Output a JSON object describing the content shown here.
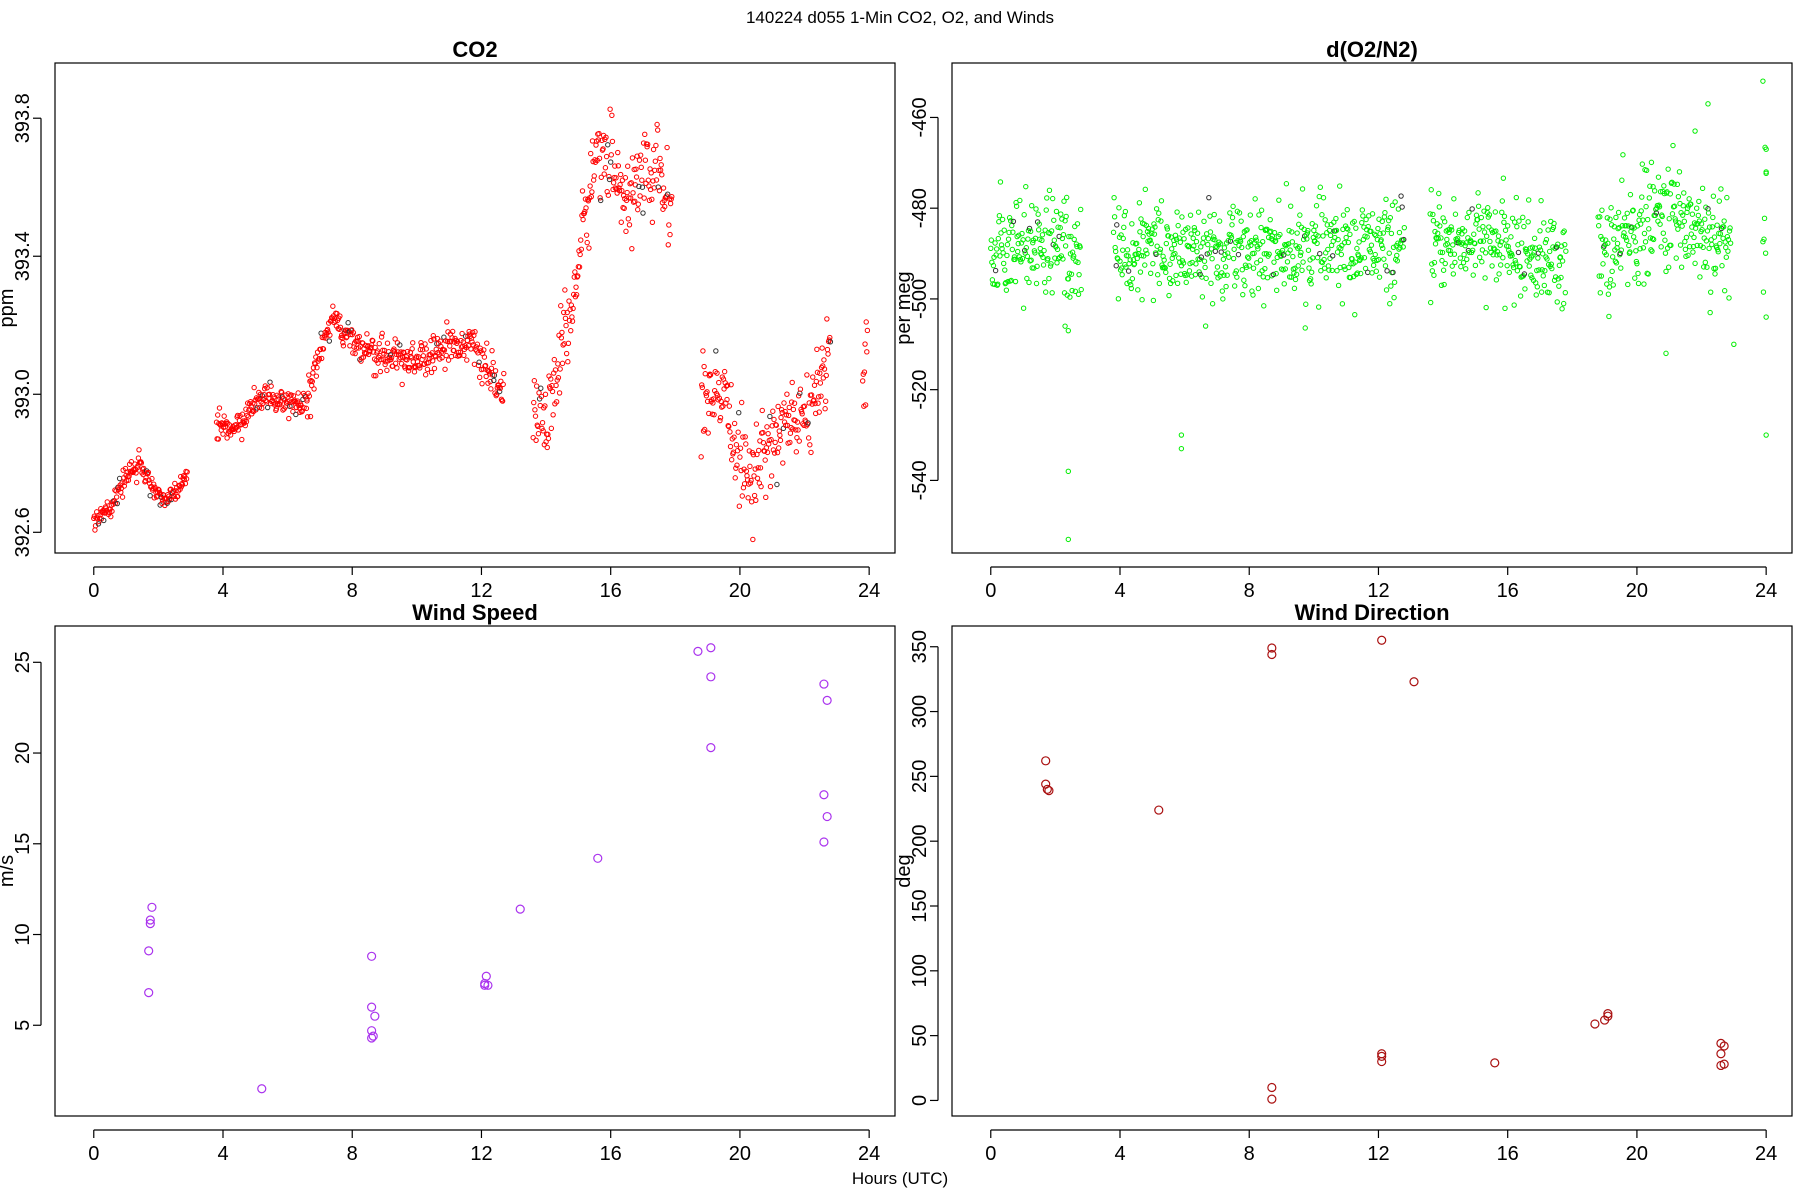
{
  "figure": {
    "title": "140224   d055   1-Min CO2, O2, and Winds",
    "xlabel": "Hours (UTC)"
  },
  "chart_data": [
    {
      "type": "scatter",
      "title": "CO2",
      "xlabel": "",
      "ylabel": "ppm",
      "xlim": [
        -1.2,
        24.8
      ],
      "ylim": [
        392.54,
        393.96
      ],
      "xticks": [
        0,
        4,
        8,
        12,
        16,
        20,
        24
      ],
      "yticks": [
        392.6,
        393.0,
        393.4,
        393.8
      ],
      "ytick_labels": [
        "392.6",
        "393.0",
        "393.4",
        "393.8"
      ],
      "color": "#ff0000",
      "dense": true,
      "points_per_hour": 55,
      "segments": [
        {
          "x": [
            0.0,
            0.5,
            1.0,
            1.4,
            1.8,
            2.2,
            2.6,
            2.9
          ],
          "y": [
            392.64,
            392.67,
            392.76,
            392.8,
            392.73,
            392.69,
            392.72,
            392.78
          ],
          "noise": 0.015
        },
        {
          "x": [
            3.8,
            4.2,
            4.6,
            5.0,
            5.5,
            6.0,
            6.6
          ],
          "y": [
            392.91,
            392.89,
            392.92,
            392.98,
            392.99,
            392.96,
            392.97
          ],
          "noise": 0.02
        },
        {
          "x": [
            6.6,
            7.0,
            7.4,
            7.8,
            8.2,
            8.6,
            9.2,
            10.0,
            10.8,
            11.6,
            12.0,
            12.3,
            12.7
          ],
          "y": [
            392.98,
            393.12,
            393.22,
            393.18,
            393.13,
            393.12,
            393.11,
            393.1,
            393.14,
            393.15,
            393.1,
            393.05,
            393.0
          ],
          "noise": 0.025
        },
        {
          "x": [
            13.6,
            14.0,
            14.4,
            14.8,
            15.2,
            15.6,
            16.0,
            16.5,
            17.0,
            17.5,
            17.9
          ],
          "y": [
            393.0,
            392.88,
            393.1,
            393.25,
            393.5,
            393.72,
            393.66,
            393.58,
            393.62,
            393.65,
            393.48
          ],
          "noise": 0.06
        },
        {
          "x": [
            18.8,
            19.2,
            19.6,
            20.0,
            20.4,
            20.8,
            21.2,
            21.6,
            22.0,
            22.4,
            22.8
          ],
          "y": [
            393.0,
            392.98,
            392.95,
            392.82,
            392.74,
            392.85,
            392.9,
            392.93,
            392.92,
            393.0,
            393.14
          ],
          "noise": 0.06
        },
        {
          "x": [
            23.8,
            23.95
          ],
          "y": [
            393.1,
            393.15
          ],
          "noise": 0.08
        }
      ]
    },
    {
      "type": "scatter",
      "title": "d(O2/N2)",
      "xlabel": "",
      "ylabel": "per meg",
      "xlim": [
        -1.2,
        24.8
      ],
      "ylim": [
        -556,
        -448
      ],
      "xticks": [
        0,
        4,
        8,
        12,
        16,
        20,
        24
      ],
      "yticks": [
        -540,
        -520,
        -500,
        -480,
        -460
      ],
      "ytick_labels": [
        "-540",
        "-520",
        "-500",
        "-480",
        "-460"
      ],
      "color": "#00ee00",
      "dense": true,
      "points_per_hour": 60,
      "segments": [
        {
          "x": [
            0.0,
            1.0,
            2.0,
            2.8
          ],
          "y": [
            -488,
            -488,
            -488,
            -490
          ],
          "noise": 6
        },
        {
          "x": [
            3.8,
            6.0,
            8.0,
            10.0,
            12.0,
            12.8
          ],
          "y": [
            -489,
            -490,
            -489,
            -489,
            -489,
            -489
          ],
          "noise": 5
        },
        {
          "x": [
            13.6,
            15.0,
            16.5,
            17.8
          ],
          "y": [
            -488,
            -487,
            -490,
            -492
          ],
          "noise": 5
        },
        {
          "x": [
            18.8,
            20.0,
            21.0,
            22.0,
            22.9
          ],
          "y": [
            -491,
            -485,
            -481,
            -485,
            -488
          ],
          "noise": 6
        },
        {
          "x": [
            23.9,
            24.0
          ],
          "y": [
            -485,
            -480
          ],
          "noise": 15
        }
      ],
      "outliers": [
        [
          2.4,
          -553
        ],
        [
          2.4,
          -538
        ],
        [
          2.3,
          -506
        ],
        [
          2.4,
          -507
        ],
        [
          5.9,
          -530
        ],
        [
          5.9,
          -533
        ],
        [
          21.8,
          -463
        ],
        [
          22.2,
          -457
        ],
        [
          24.0,
          -530
        ],
        [
          23.9,
          -452
        ],
        [
          24.0,
          -467
        ],
        [
          24.0,
          -472
        ],
        [
          24.0,
          -504
        ],
        [
          20.9,
          -512
        ],
        [
          23.0,
          -510
        ]
      ]
    },
    {
      "type": "scatter",
      "title": "Wind Speed",
      "xlabel": "",
      "ylabel": "m/s",
      "xlim": [
        -1.2,
        24.8
      ],
      "ylim": [
        0.0,
        27.0
      ],
      "xticks": [
        0,
        4,
        8,
        12,
        16,
        20,
        24
      ],
      "yticks": [
        5,
        10,
        15,
        20,
        25
      ],
      "ytick_labels": [
        "5",
        "10",
        "15",
        "20",
        "25"
      ],
      "color": "#aa33ee",
      "dense": false,
      "points": [
        [
          1.7,
          6.8
        ],
        [
          1.7,
          9.1
        ],
        [
          1.75,
          10.6
        ],
        [
          1.75,
          10.8
        ],
        [
          1.8,
          11.5
        ],
        [
          5.2,
          1.5
        ],
        [
          8.6,
          8.8
        ],
        [
          8.6,
          6.0
        ],
        [
          8.7,
          5.5
        ],
        [
          8.6,
          4.7
        ],
        [
          8.65,
          4.4
        ],
        [
          8.6,
          4.3
        ],
        [
          12.1,
          7.2
        ],
        [
          12.1,
          7.3
        ],
        [
          12.15,
          7.7
        ],
        [
          12.2,
          7.2
        ],
        [
          13.2,
          11.4
        ],
        [
          15.6,
          14.2
        ],
        [
          18.7,
          25.6
        ],
        [
          19.1,
          25.8
        ],
        [
          19.1,
          24.2
        ],
        [
          19.1,
          20.3
        ],
        [
          22.6,
          23.8
        ],
        [
          22.7,
          22.9
        ],
        [
          22.6,
          17.7
        ],
        [
          22.7,
          16.5
        ],
        [
          22.6,
          15.1
        ]
      ]
    },
    {
      "type": "scatter",
      "title": "Wind Direction",
      "xlabel": "",
      "ylabel": "deg",
      "xlim": [
        -1.2,
        24.8
      ],
      "ylim": [
        -12,
        366
      ],
      "xticks": [
        0,
        4,
        8,
        12,
        16,
        20,
        24
      ],
      "yticks": [
        0,
        50,
        100,
        150,
        200,
        250,
        300,
        350
      ],
      "ytick_labels": [
        "0",
        "50",
        "100",
        "150",
        "200",
        "250",
        "300",
        "350"
      ],
      "color": "#aa1111",
      "dense": false,
      "points": [
        [
          1.7,
          262
        ],
        [
          1.7,
          244
        ],
        [
          1.75,
          240
        ],
        [
          1.8,
          239
        ],
        [
          5.2,
          224
        ],
        [
          8.7,
          349
        ],
        [
          8.7,
          344
        ],
        [
          8.7,
          10
        ],
        [
          8.7,
          1
        ],
        [
          12.1,
          355
        ],
        [
          12.1,
          36
        ],
        [
          12.1,
          34
        ],
        [
          12.1,
          30
        ],
        [
          13.1,
          323
        ],
        [
          15.6,
          29
        ],
        [
          18.7,
          59
        ],
        [
          19.0,
          62
        ],
        [
          19.1,
          67
        ],
        [
          19.1,
          65
        ],
        [
          22.6,
          44
        ],
        [
          22.7,
          42
        ],
        [
          22.6,
          36
        ],
        [
          22.6,
          27
        ],
        [
          22.7,
          28
        ]
      ]
    }
  ]
}
